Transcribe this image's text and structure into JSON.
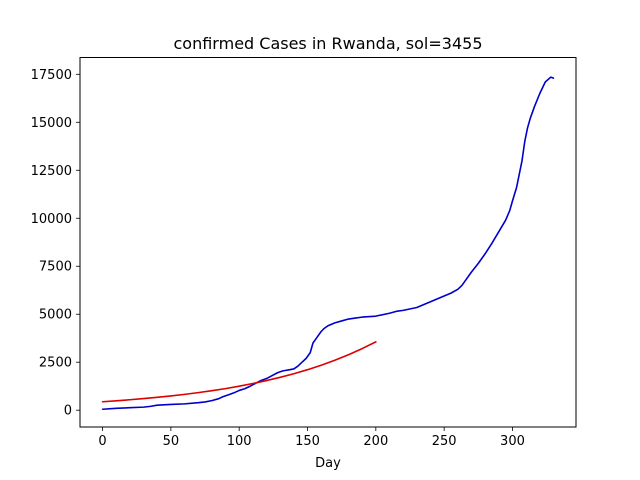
{
  "chart_data": {
    "type": "line",
    "title": "confirmed Cases in Rwanda, sol=3455",
    "xlabel": "Day",
    "ylabel": "",
    "xlim": [
      -16.5,
      346.5
    ],
    "ylim": [
      -875,
      18375
    ],
    "x_ticks": [
      0,
      50,
      100,
      150,
      200,
      250,
      300
    ],
    "x_tick_labels": [
      "0",
      "50",
      "100",
      "150",
      "200",
      "250",
      "300"
    ],
    "y_ticks": [
      0,
      2500,
      5000,
      7500,
      10000,
      12500,
      15000,
      17500
    ],
    "y_tick_labels": [
      "0",
      "2500",
      "5000",
      "7500",
      "10000",
      "12500",
      "15000",
      "17500"
    ],
    "grid": false,
    "legend": "none",
    "series": [
      {
        "color": "#0000cc",
        "x": [
          0,
          10,
          20,
          30,
          35,
          40,
          50,
          60,
          70,
          75,
          80,
          85,
          88,
          92,
          96,
          100,
          104,
          108,
          112,
          116,
          120,
          124,
          128,
          132,
          136,
          140,
          143,
          146,
          149,
          152,
          154,
          156,
          158,
          160,
          162,
          165,
          170,
          175,
          180,
          185,
          190,
          200,
          210,
          215,
          220,
          230,
          235,
          240,
          245,
          250,
          255,
          260,
          263,
          266,
          270,
          275,
          280,
          285,
          290,
          295,
          298,
          300,
          303,
          305,
          307,
          309,
          311,
          313,
          316,
          320,
          324,
          328,
          330
        ],
        "y": [
          50,
          100,
          130,
          160,
          200,
          260,
          300,
          330,
          390,
          430,
          500,
          600,
          700,
          800,
          900,
          1030,
          1120,
          1250,
          1400,
          1550,
          1650,
          1800,
          1950,
          2050,
          2100,
          2150,
          2300,
          2500,
          2700,
          3000,
          3500,
          3700,
          3900,
          4100,
          4250,
          4400,
          4550,
          4650,
          4750,
          4800,
          4850,
          4900,
          5050,
          5150,
          5200,
          5350,
          5500,
          5650,
          5800,
          5950,
          6100,
          6300,
          6500,
          6800,
          7200,
          7650,
          8150,
          8700,
          9300,
          9900,
          10400,
          10900,
          11600,
          12300,
          13000,
          14000,
          14700,
          15200,
          15800,
          16500,
          17100,
          17350,
          17300
        ]
      },
      {
        "color": "#dd0000",
        "x": [
          0,
          10,
          20,
          30,
          40,
          50,
          60,
          70,
          80,
          90,
          100,
          110,
          120,
          130,
          140,
          150,
          160,
          170,
          180,
          190,
          200
        ],
        "y": [
          440,
          490,
          545,
          605,
          670,
          745,
          825,
          915,
          1015,
          1125,
          1250,
          1390,
          1545,
          1715,
          1900,
          2110,
          2340,
          2600,
          2890,
          3210,
          3560
        ]
      }
    ]
  }
}
